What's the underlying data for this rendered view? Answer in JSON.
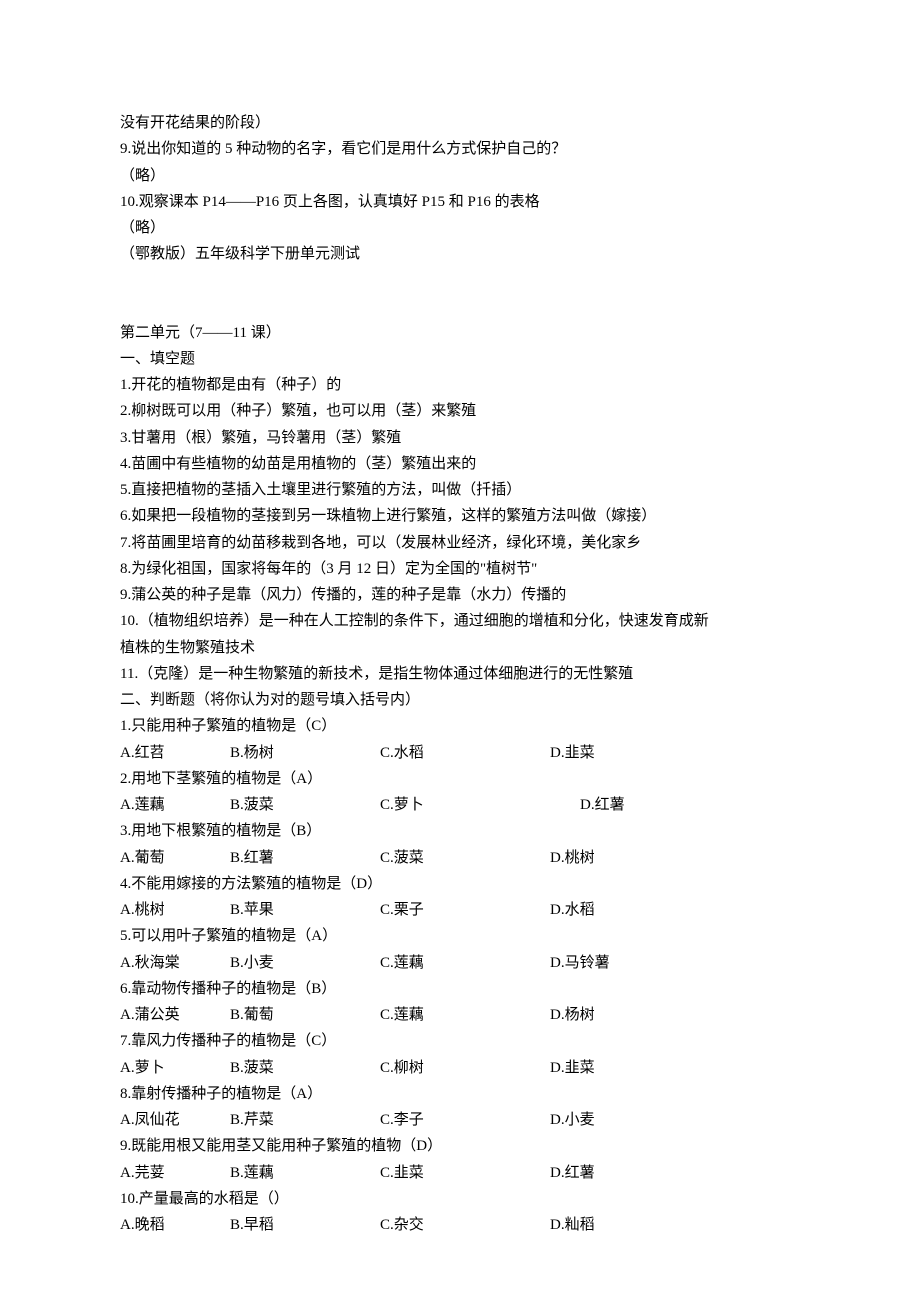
{
  "top": {
    "l1": "没有开花结果的阶段）",
    "l2": "9.说出你知道的 5 种动物的名字，看它们是用什么方式保护自己的？",
    "l3": "（略）",
    "l4": "10.观察课本 P14——P16 页上各图，认真填好 P15 和 P16 的表格",
    "l5": "（略）",
    "l6": "（鄂教版）五年级科学下册单元测试"
  },
  "unit": {
    "title": "第二单元（7——11 课）",
    "s1": "一、填空题",
    "f1": "1.开花的植物都是由有（种子）的",
    "f2": "2.柳树既可以用（种子）繁殖，也可以用（茎）来繁殖",
    "f3": "3.甘薯用（根）繁殖，马铃薯用（茎）繁殖",
    "f4": "4.苗圃中有些植物的幼苗是用植物的（茎）繁殖出来的",
    "f5": "5.直接把植物的茎插入土壤里进行繁殖的方法，叫做（扦插）",
    "f6": "6.如果把一段植物的茎接到另一珠植物上进行繁殖，这样的繁殖方法叫做（嫁接）",
    "f7": "7.将苗圃里培育的幼苗移栽到各地，可以（发展林业经济，绿化环境，美化家乡",
    "f8": "8.为绿化祖国，国家将每年的（3 月 12 日）定为全国的\"植树节\"",
    "f9": "9.蒲公英的种子是靠（风力）传播的，莲的种子是靠（水力）传播的",
    "f10a": "10.（植物组织培养）是一种在人工控制的条件下，通过细胞的增植和分化，快速发育成新",
    "f10b": "植株的生物繁殖技术",
    "f11": "11.（克隆）是一种生物繁殖的新技术，是指生物体通过体细胞进行的无性繁殖",
    "s2": "二、判断题（将你认为对的题号填入括号内）"
  },
  "q": [
    {
      "stem": "1.只能用种子繁殖的植物是（C）",
      "a": "A.红苕",
      "b": "B.杨树",
      "c": "C.水稻",
      "d": "D.韭菜",
      "wide": false
    },
    {
      "stem": "2.用地下茎繁殖的植物是（A）",
      "a": "A.莲藕",
      "b": "B.菠菜",
      "c": "C.萝卜",
      "d": "D.红薯",
      "wide": true
    },
    {
      "stem": "3.用地下根繁殖的植物是（B）",
      "a": "A.葡萄",
      "b": "B.红薯",
      "c": "C.菠菜",
      "d": "D.桃树",
      "wide": false
    },
    {
      "stem": "4.不能用嫁接的方法繁殖的植物是（D）",
      "a": "A.桃树",
      "b": "B.苹果",
      "c": "C.栗子",
      "d": "D.水稻",
      "wide": false
    },
    {
      "stem": "5.可以用叶子繁殖的植物是（A）",
      "a": "A.秋海棠",
      "b": "B.小麦",
      "c": "C.莲藕",
      "d": "D.马铃薯",
      "wide": false
    },
    {
      "stem": "6.靠动物传播种子的植物是（B）",
      "a": "A.蒲公英",
      "b": "B.葡萄",
      "c": "C.莲藕",
      "d": "D.杨树",
      "wide": false
    },
    {
      "stem": "7.靠风力传播种子的植物是（C）",
      "a": "A.萝卜",
      "b": "B.菠菜",
      "c": "C.柳树",
      "d": "D.韭菜",
      "wide": false
    },
    {
      "stem": "8.靠射传播种子的植物是（A）",
      "a": "A.凤仙花",
      "b": "B.芹菜",
      "c": "C.李子",
      "d": "D.小麦",
      "wide": false
    },
    {
      "stem": "9.既能用根又能用茎又能用种子繁殖的植物（D）",
      "a": "A.芫荽",
      "b": "B.莲藕",
      "c": "C.韭菜",
      "d": "D.红薯",
      "wide": false
    },
    {
      "stem": "10.产量最高的水稻是（）",
      "a": "A.晚稻",
      "b": "B.早稻",
      "c": "C.杂交",
      "d": "D.籼稻",
      "wide": false
    }
  ]
}
